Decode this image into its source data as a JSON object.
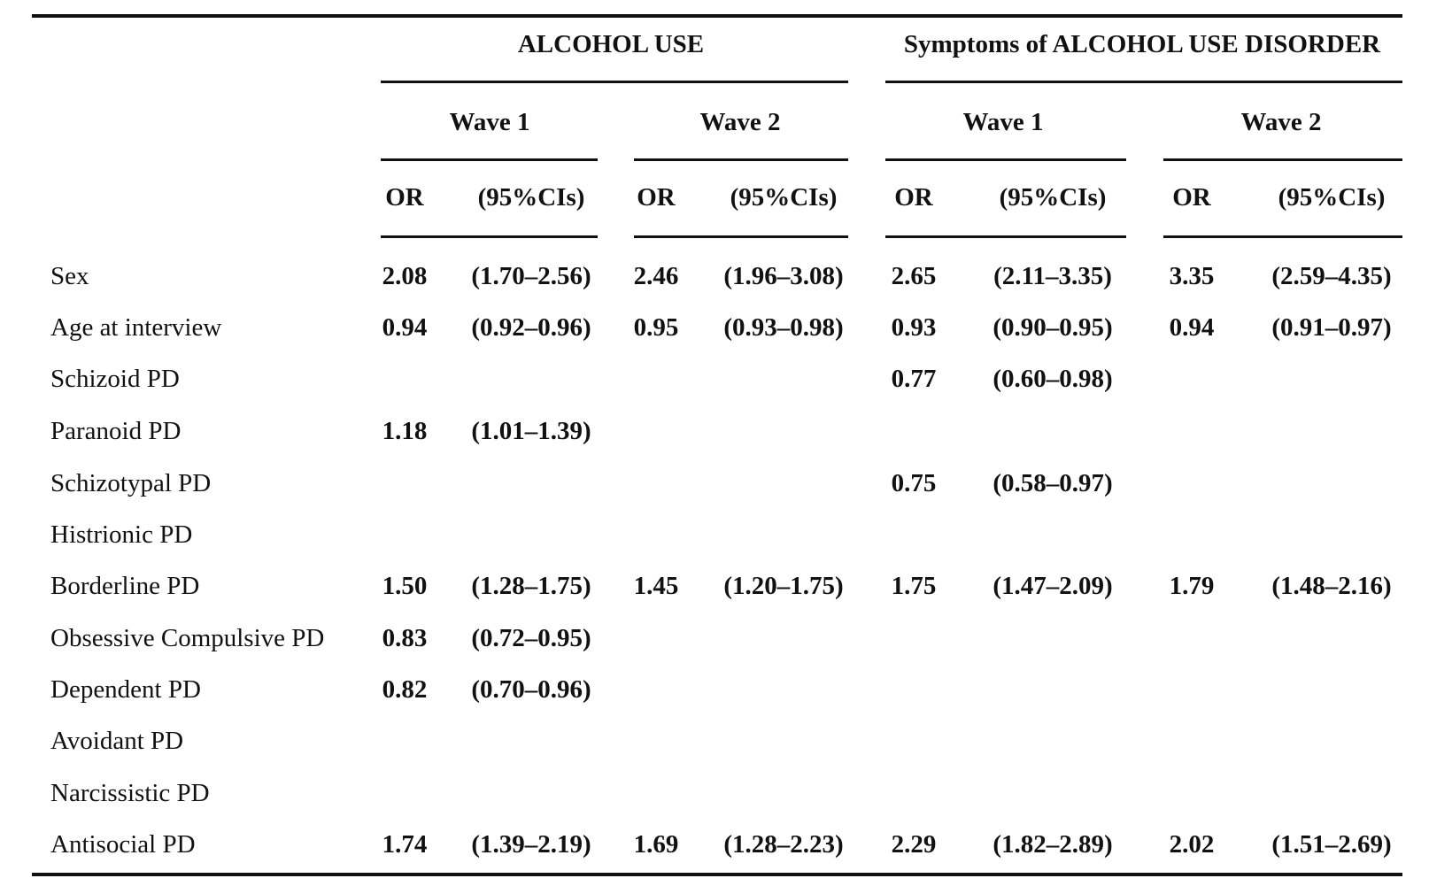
{
  "table": {
    "group_headers": [
      "ALCOHOL USE",
      "Symptoms of ALCOHOL USE DISORDER"
    ],
    "wave_headers": [
      "Wave 1",
      "Wave 2",
      "Wave 1",
      "Wave 2"
    ],
    "col_headers": {
      "or": "OR",
      "ci": "(95%CIs)"
    },
    "rows": [
      {
        "label": "Sex",
        "cells": [
          {
            "or": "2.08",
            "ci": "(1.70–2.56)"
          },
          {
            "or": "2.46",
            "ci": "(1.96–3.08)"
          },
          {
            "or": "2.65",
            "ci": "(2.11–3.35)"
          },
          {
            "or": "3.35",
            "ci": "(2.59–4.35)"
          }
        ]
      },
      {
        "label": "Age at interview",
        "cells": [
          {
            "or": "0.94",
            "ci": "(0.92–0.96)"
          },
          {
            "or": "0.95",
            "ci": "(0.93–0.98)"
          },
          {
            "or": "0.93",
            "ci": "(0.90–0.95)"
          },
          {
            "or": "0.94",
            "ci": "(0.91–0.97)"
          }
        ]
      },
      {
        "label": "Schizoid PD",
        "cells": [
          {
            "or": "",
            "ci": ""
          },
          {
            "or": "",
            "ci": ""
          },
          {
            "or": "0.77",
            "ci": "(0.60–0.98)"
          },
          {
            "or": "",
            "ci": ""
          }
        ]
      },
      {
        "label": "Paranoid PD",
        "cells": [
          {
            "or": "1.18",
            "ci": "(1.01–1.39)"
          },
          {
            "or": "",
            "ci": ""
          },
          {
            "or": "",
            "ci": ""
          },
          {
            "or": "",
            "ci": ""
          }
        ]
      },
      {
        "label": "Schizotypal PD",
        "cells": [
          {
            "or": "",
            "ci": ""
          },
          {
            "or": "",
            "ci": ""
          },
          {
            "or": "0.75",
            "ci": "(0.58–0.97)"
          },
          {
            "or": "",
            "ci": ""
          }
        ]
      },
      {
        "label": "Histrionic PD",
        "cells": [
          {
            "or": "",
            "ci": ""
          },
          {
            "or": "",
            "ci": ""
          },
          {
            "or": "",
            "ci": ""
          },
          {
            "or": "",
            "ci": ""
          }
        ]
      },
      {
        "label": "Borderline PD",
        "cells": [
          {
            "or": "1.50",
            "ci": "(1.28–1.75)"
          },
          {
            "or": "1.45",
            "ci": "(1.20–1.75)"
          },
          {
            "or": "1.75",
            "ci": "(1.47–2.09)"
          },
          {
            "or": "1.79",
            "ci": "(1.48–2.16)"
          }
        ]
      },
      {
        "label": "Obsessive Compulsive PD",
        "cells": [
          {
            "or": "0.83",
            "ci": "(0.72–0.95)"
          },
          {
            "or": "",
            "ci": ""
          },
          {
            "or": "",
            "ci": ""
          },
          {
            "or": "",
            "ci": ""
          }
        ]
      },
      {
        "label": "Dependent PD",
        "cells": [
          {
            "or": "0.82",
            "ci": "(0.70–0.96)"
          },
          {
            "or": "",
            "ci": ""
          },
          {
            "or": "",
            "ci": ""
          },
          {
            "or": "",
            "ci": ""
          }
        ]
      },
      {
        "label": "Avoidant PD",
        "cells": [
          {
            "or": "",
            "ci": ""
          },
          {
            "or": "",
            "ci": ""
          },
          {
            "or": "",
            "ci": ""
          },
          {
            "or": "",
            "ci": ""
          }
        ]
      },
      {
        "label": "Narcissistic PD",
        "cells": [
          {
            "or": "",
            "ci": ""
          },
          {
            "or": "",
            "ci": ""
          },
          {
            "or": "",
            "ci": ""
          },
          {
            "or": "",
            "ci": ""
          }
        ]
      },
      {
        "label": "Antisocial PD",
        "cells": [
          {
            "or": "1.74",
            "ci": "(1.39–2.19)"
          },
          {
            "or": "1.69",
            "ci": "(1.28–2.23)"
          },
          {
            "or": "2.29",
            "ci": "(1.82–2.89)"
          },
          {
            "or": "2.02",
            "ci": "(1.51–2.69)"
          }
        ]
      }
    ]
  }
}
